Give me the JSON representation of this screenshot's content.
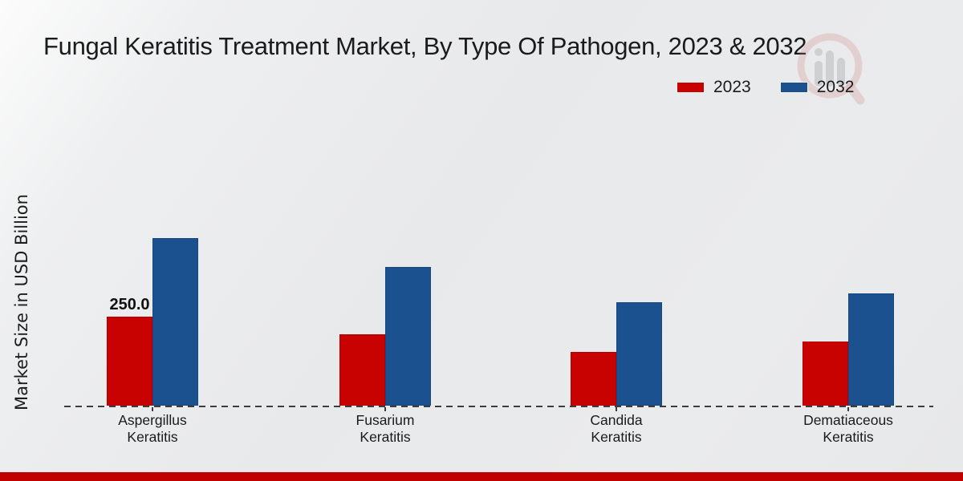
{
  "page": {
    "title": "Fungal Keratitis Treatment Market, By Type Of Pathogen, 2023 & 2032"
  },
  "chart": {
    "ylabel": "Market Size in USD Billion",
    "legend": {
      "items": [
        {
          "label": "2023",
          "color": "#c80101"
        },
        {
          "label": "2032",
          "color": "#1b518f"
        }
      ]
    }
  },
  "chart_data": {
    "type": "bar",
    "title": "Fungal Keratitis Treatment Market, By Type Of Pathogen, 2023 & 2032",
    "categories": [
      "Aspergillus Keratitis",
      "Fusarium Keratitis",
      "Candida Keratitis",
      "Dematiaceous Keratitis"
    ],
    "series": [
      {
        "name": "2023",
        "color": "#c80101",
        "values": [
          250.0,
          200.0,
          150.0,
          180.0
        ]
      },
      {
        "name": "2032",
        "color": "#1b518f",
        "values": [
          470.0,
          390.0,
          290.0,
          315.0
        ]
      }
    ],
    "annotations": [
      {
        "series": "2023",
        "category": "Aspergillus Keratitis",
        "text": "250.0"
      }
    ],
    "xlabel": "",
    "ylabel": "Market Size in USD Billion",
    "ylim": [
      0,
      500
    ],
    "grid": false,
    "legend_position": "top-right",
    "baseline_style": "dashed",
    "bar_colors": {
      "2023": "#c80101",
      "2032": "#1b518f"
    }
  },
  "footer": {
    "accent_color": "#c10000"
  },
  "watermark": {
    "icon": "magnifier-bar-chart-logo"
  }
}
